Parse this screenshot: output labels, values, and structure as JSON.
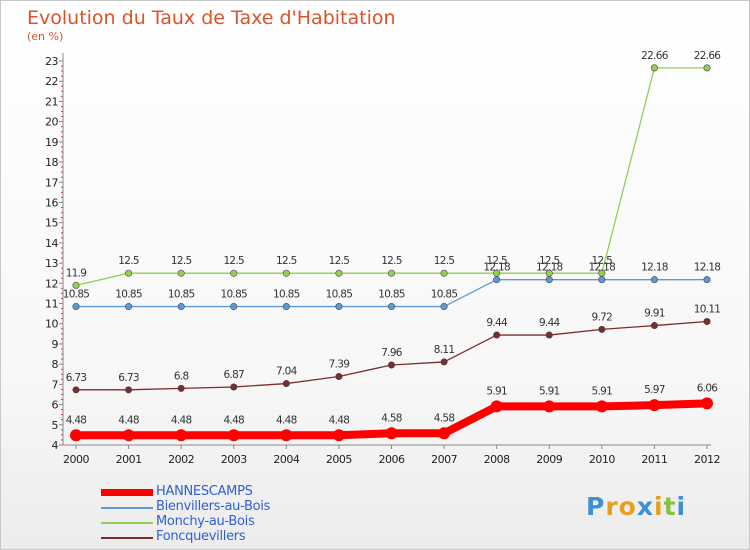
{
  "header": {
    "title": "Evolution du Taux de Taxe d'Habitation",
    "unit": "(en %)"
  },
  "logo": {
    "letters": [
      "P",
      "r",
      "o",
      "x",
      "i",
      "t",
      "i"
    ],
    "colors": [
      "#3d8fd6",
      "#e6a020",
      "#e6a020",
      "#3d8fd6",
      "#e6a020",
      "#89c03c",
      "#3d8fd6"
    ]
  },
  "chart_data": {
    "type": "line",
    "title": "Evolution du Taux de Taxe d'Habitation",
    "ylabel": "(en %)",
    "x": [
      "2000",
      "2001",
      "2002",
      "2003",
      "2004",
      "2005",
      "2006",
      "2007",
      "2008",
      "2009",
      "2010",
      "2011",
      "2012"
    ],
    "ylim": [
      4,
      23
    ],
    "yticks": [
      4,
      5,
      6,
      7,
      8,
      9,
      10,
      11,
      12,
      13,
      14,
      15,
      16,
      17,
      18,
      19,
      20,
      21,
      22,
      23
    ],
    "grid": false,
    "legend_position": "bottom-left",
    "series": [
      {
        "name": "HANNESCAMPS",
        "color": "#ff0000",
        "values": [
          4.48,
          4.48,
          4.48,
          4.48,
          4.48,
          4.48,
          4.58,
          4.58,
          5.91,
          5.91,
          5.91,
          5.97,
          6.06
        ],
        "labels": [
          "4.48",
          "4.48",
          "4.48",
          "4.48",
          "4.48",
          "4.48",
          "4.58",
          "4.58",
          "5.91",
          "5.91",
          "5.91",
          "5.97",
          "6.06"
        ]
      },
      {
        "name": "Bienvillers-au-Bois",
        "color": "#5b9bd5",
        "values": [
          10.85,
          10.85,
          10.85,
          10.85,
          10.85,
          10.85,
          10.85,
          10.85,
          12.18,
          12.18,
          12.18,
          12.18,
          12.18
        ],
        "labels": [
          "10.85",
          "10.85",
          "10.85",
          "10.85",
          "10.85",
          "10.85",
          "10.85",
          "10.85",
          "12.18",
          "12.18",
          "12.18",
          "12.18",
          "12.18"
        ]
      },
      {
        "name": "Monchy-au-Bois",
        "color": "#92d050",
        "values": [
          11.9,
          12.5,
          12.5,
          12.5,
          12.5,
          12.5,
          12.5,
          12.5,
          12.5,
          12.5,
          12.5,
          22.66,
          22.66
        ],
        "labels": [
          "11.9",
          "12.5",
          "12.5",
          "12.5",
          "12.5",
          "12.5",
          "12.5",
          "12.5",
          "12.5",
          "12.5",
          "12.5",
          "22.66",
          "22.66"
        ]
      },
      {
        "name": "Foncquevillers",
        "color": "#7b2c2c",
        "values": [
          6.73,
          6.73,
          6.8,
          6.87,
          7.04,
          7.39,
          7.96,
          8.11,
          9.44,
          9.44,
          9.72,
          9.91,
          10.11
        ],
        "labels": [
          "6.73",
          "6.73",
          "6.8",
          "6.87",
          "7.04",
          "7.39",
          "7.96",
          "8.11",
          "9.44",
          "9.44",
          "9.72",
          "9.91",
          "10.11"
        ]
      }
    ]
  }
}
